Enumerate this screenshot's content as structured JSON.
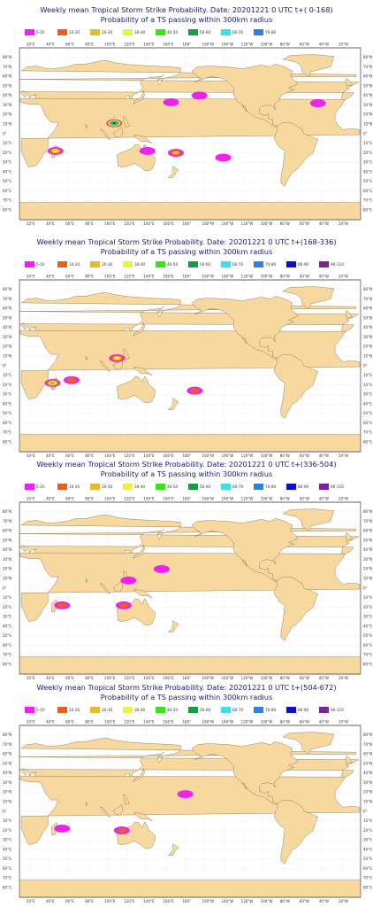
{
  "legend_labels": [
    "5-10",
    "10-20",
    "20-30",
    "30-40",
    "40-50",
    "50-60",
    "60-70",
    "70-80",
    "80-90",
    "90-110"
  ],
  "legend_colors": [
    "#ee22ee",
    "#e8601c",
    "#e8b830",
    "#f0f040",
    "#40e020",
    "#10a040",
    "#40e0e0",
    "#3080e0",
    "#1010c0",
    "#8020a0"
  ],
  "lon_labels": [
    "20°E",
    "40°E",
    "60°E",
    "80°E",
    "100°E",
    "120°E",
    "140°E",
    "160°E",
    "180°",
    "160°W",
    "140°W",
    "120°W",
    "100°W",
    "80°W",
    "60°W",
    "40°W",
    "20°W"
  ],
  "lat_labels": [
    "80°N",
    "70°N",
    "60°N",
    "50°N",
    "40°N",
    "30°N",
    "20°N",
    "10°N",
    "0°",
    "10°S",
    "20°S",
    "30°S",
    "40°S",
    "50°S",
    "60°S",
    "70°S",
    "80°S"
  ],
  "panels": [
    {
      "title1": "Weekly mean Tropical Storm Strike Probability. Date: 20201221  0 UTC    t+(  0-168)",
      "title2": "Probability of a TS passing within  300km radius"
    },
    {
      "title1": "Weekly mean Tropical Storm Strike Probability. Date: 20201221  0 UTC    t+(168-336)",
      "title2": "Probability of a TS passing within  300km radius"
    },
    {
      "title1": "Weekly mean Tropical Storm Strike Probability. Date: 20201221  0 UTC    t+(336-504)",
      "title2": "Probability of a TS passing within  300km radius"
    },
    {
      "title1": "Weekly mean Tropical Storm Strike Probability. Date: 20201221  0 UTC    t+(504-672)",
      "title2": "Probability of a TS passing within  300km radius"
    }
  ],
  "chart_data": [
    {
      "type": "heatmap",
      "title": "Weekly mean Tropical Storm Strike Probability. Date: 20201221  0 UTC    t+(  0-168)",
      "subtitle": "Probability of a TS passing within  300km radius",
      "blobs": [
        {
          "lon": 48,
          "lat": -18,
          "max_class": "30-40"
        },
        {
          "lon": 110,
          "lat": 11,
          "max_class": "80-90"
        },
        {
          "lon": 170,
          "lat": 33,
          "max_class": "5-10"
        },
        {
          "lon": -160,
          "lat": 40,
          "max_class": "5-10"
        },
        {
          "lon": -35,
          "lat": 32,
          "max_class": "5-10"
        },
        {
          "lon": 145,
          "lat": -18,
          "max_class": "5-10"
        },
        {
          "lon": 175,
          "lat": -20,
          "max_class": "20-30"
        },
        {
          "lon": -135,
          "lat": -25,
          "max_class": "5-10"
        }
      ]
    },
    {
      "type": "heatmap",
      "title": "Weekly mean Tropical Storm Strike Probability. Date: 20201221  0 UTC    t+(168-336)",
      "subtitle": "Probability of a TS passing within  300km radius",
      "blobs": [
        {
          "lon": 45,
          "lat": -18,
          "max_class": "40-50"
        },
        {
          "lon": 65,
          "lat": -15,
          "max_class": "10-20"
        },
        {
          "lon": 113,
          "lat": 8,
          "max_class": "30-40"
        },
        {
          "lon": -165,
          "lat": -26,
          "max_class": "10-20"
        }
      ]
    },
    {
      "type": "heatmap",
      "title": "Weekly mean Tropical Storm Strike Probability. Date: 20201221  0 UTC    t+(336-504)",
      "subtitle": "Probability of a TS passing within  300km radius",
      "blobs": [
        {
          "lon": 55,
          "lat": -18,
          "max_class": "10-20"
        },
        {
          "lon": 120,
          "lat": -18,
          "max_class": "10-20"
        },
        {
          "lon": 125,
          "lat": 8,
          "max_class": "5-10"
        },
        {
          "lon": 160,
          "lat": 20,
          "max_class": "5-10"
        }
      ]
    },
    {
      "type": "heatmap",
      "title": "Weekly mean Tropical Storm Strike Probability. Date: 20201221  0 UTC    t+(504-672)",
      "subtitle": "Probability of a TS passing within  300km radius",
      "blobs": [
        {
          "lon": 55,
          "lat": -18,
          "max_class": "5-10"
        },
        {
          "lon": 118,
          "lat": -20,
          "max_class": "10-20"
        },
        {
          "lon": -175,
          "lat": 18,
          "max_class": "5-10"
        }
      ]
    }
  ]
}
